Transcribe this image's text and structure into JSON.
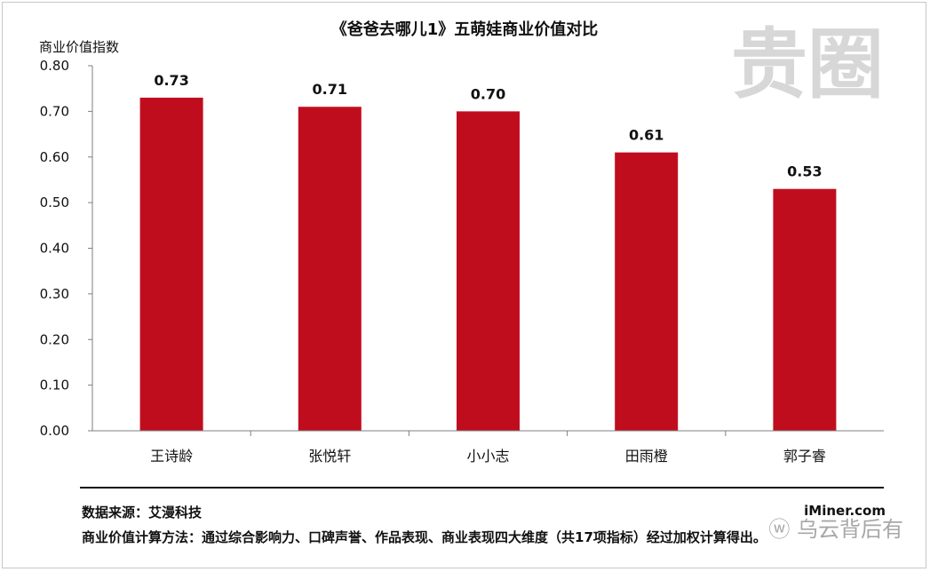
{
  "chart_data": {
    "type": "bar",
    "title": "《爸爸去哪儿1》五萌娃商业价值对比",
    "ylabel": "商业价值指数",
    "xlabel": "",
    "categories": [
      "王诗龄",
      "张悦轩",
      "小小志",
      "田雨橙",
      "郭子睿"
    ],
    "values": [
      0.73,
      0.71,
      0.7,
      0.61,
      0.53
    ],
    "value_labels": [
      "0.73",
      "0.71",
      "0.70",
      "0.61",
      "0.53"
    ],
    "ylim": [
      0,
      0.8
    ],
    "yticks": [
      0.0,
      0.1,
      0.2,
      0.3,
      0.4,
      0.5,
      0.6,
      0.7,
      0.8
    ],
    "ytick_labels": [
      "0.00",
      "0.10",
      "0.20",
      "0.30",
      "0.40",
      "0.50",
      "0.60",
      "0.70",
      "0.80"
    ],
    "grid": false,
    "colors": {
      "bar": "#c00d1e",
      "axis": "#7f7f7f"
    }
  },
  "footer": {
    "source": "数据来源：艾漫科技",
    "brand": "iMiner.com",
    "method": "商业价值计算方法：通过综合影响力、口碑声誉、作品表现、商业表现四大维度（共17项指标）经过加权计算得出。",
    "social": "ⓦ 乌云背后有"
  },
  "watermark": {
    "text": "贵圈"
  }
}
